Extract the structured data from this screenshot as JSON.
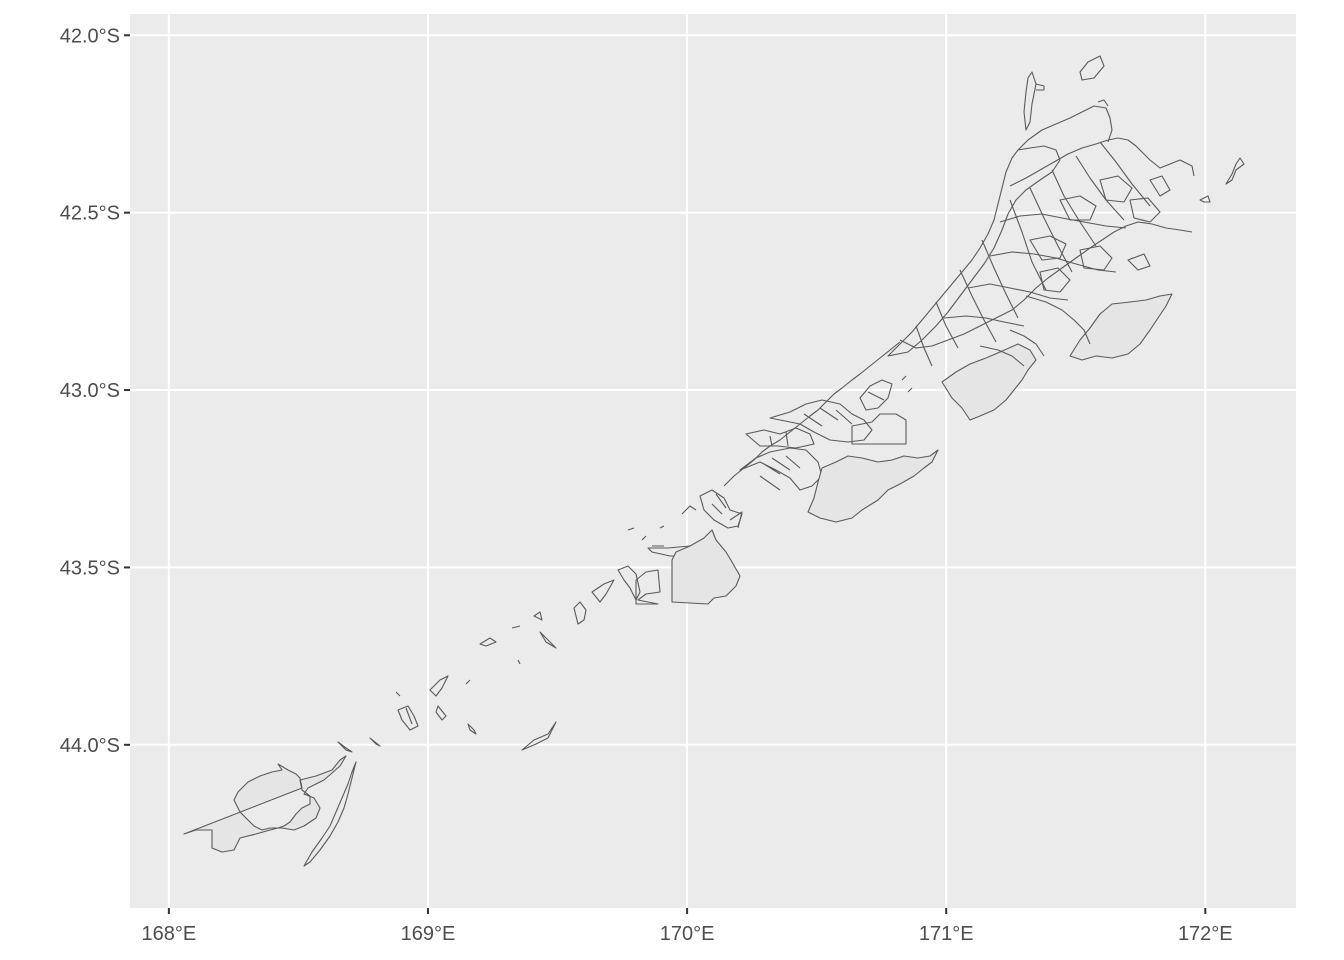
{
  "map": {
    "type": "choropleth-outline",
    "title": "",
    "xlabel": "",
    "ylabel": "",
    "x_ticks": [
      {
        "value": 168,
        "label": "168°E"
      },
      {
        "value": 169,
        "label": "169°E"
      },
      {
        "value": 170,
        "label": "170°E"
      },
      {
        "value": 171,
        "label": "171°E"
      },
      {
        "value": 172,
        "label": "172°E"
      }
    ],
    "y_ticks": [
      {
        "value": -42.0,
        "label": "42.0°S"
      },
      {
        "value": -42.5,
        "label": "42.5°S"
      },
      {
        "value": -43.0,
        "label": "43.0°S"
      },
      {
        "value": -43.5,
        "label": "43.5°S"
      },
      {
        "value": -44.0,
        "label": "44.0°S"
      }
    ],
    "xlim": [
      167.85,
      172.35
    ],
    "ylim": [
      -44.46,
      -41.94
    ],
    "colors": {
      "panel_background": "#ebebeb",
      "grid": "#ffffff",
      "polygon_fill": "#e5e5e5",
      "polygon_outline": "#5a5a5a",
      "tick_text": "#4d4d4d"
    }
  }
}
